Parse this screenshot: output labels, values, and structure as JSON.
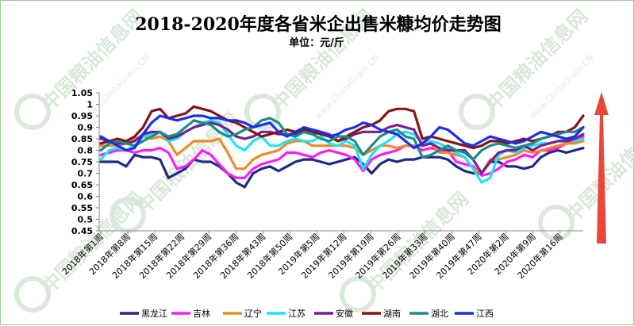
{
  "watermark": {
    "brand": "中国粮油信息网",
    "site": "www.ChinaGrain.CN"
  },
  "chart_data": {
    "type": "line",
    "title": "2018-2020年度各省米企出售米糠均价走势图",
    "subtitle": "单位：元/斤",
    "xlabel": "",
    "ylabel": "",
    "ylim": [
      0.45,
      1.05
    ],
    "yticks": [
      "0.45",
      "0.5",
      "0.55",
      "0.6",
      "0.65",
      "0.7",
      "0.75",
      "0.8",
      "0.85",
      "0.9",
      "0.95",
      "1",
      "1.05"
    ],
    "legend_position": "bottom",
    "grid": false,
    "x_tick_labels": [
      "2018年第1周",
      "2018年第8周",
      "2018年第15周",
      "2018年第22周",
      "2018年第29周",
      "2018年第36周",
      "2018年第43周",
      "2018年第50周",
      "2019年第5周",
      "2019年第12周",
      "2019年第19周",
      "2019年第26周",
      "2019年第33周",
      "2019年第40周",
      "2019年第47周",
      "2020年第2周",
      "2020年第9周",
      "2020年第16周"
    ],
    "series": [
      {
        "name": "黑龙江",
        "color": "#1f2a86",
        "values": [
          0.75,
          0.75,
          0.75,
          0.73,
          0.78,
          0.77,
          0.77,
          0.76,
          0.68,
          0.7,
          0.72,
          0.76,
          0.75,
          0.75,
          0.73,
          0.7,
          0.66,
          0.64,
          0.7,
          0.72,
          0.73,
          0.71,
          0.73,
          0.75,
          0.76,
          0.76,
          0.75,
          0.74,
          0.75,
          0.76,
          0.77,
          0.74,
          0.7,
          0.74,
          0.76,
          0.75,
          0.76,
          0.76,
          0.77,
          0.77,
          0.77,
          0.76,
          0.73,
          0.71,
          0.7,
          0.7,
          0.75,
          0.75,
          0.73,
          0.73,
          0.72,
          0.73,
          0.77,
          0.79,
          0.8,
          0.79,
          0.8,
          0.81
        ]
      },
      {
        "name": "吉林",
        "color": "#ff1cf0",
        "values": [
          0.78,
          0.79,
          0.8,
          0.8,
          0.79,
          0.8,
          0.8,
          0.81,
          0.79,
          0.72,
          0.73,
          0.76,
          0.8,
          0.78,
          0.74,
          0.7,
          0.68,
          0.68,
          0.72,
          0.74,
          0.75,
          0.76,
          0.79,
          0.79,
          0.78,
          0.77,
          0.79,
          0.8,
          0.79,
          0.78,
          0.76,
          0.71,
          0.76,
          0.78,
          0.79,
          0.8,
          0.82,
          0.82,
          0.8,
          0.81,
          0.8,
          0.8,
          0.75,
          0.74,
          0.73,
          0.69,
          0.7,
          0.72,
          0.75,
          0.76,
          0.78,
          0.77,
          0.8,
          0.8,
          0.81,
          0.83,
          0.84,
          0.86
        ]
      },
      {
        "name": "辽宁",
        "color": "#ef8a2a",
        "values": [
          0.82,
          0.82,
          0.82,
          0.83,
          0.85,
          0.86,
          0.85,
          0.86,
          0.84,
          0.78,
          0.81,
          0.84,
          0.84,
          0.84,
          0.85,
          0.79,
          0.72,
          0.72,
          0.76,
          0.78,
          0.79,
          0.8,
          0.83,
          0.84,
          0.84,
          0.82,
          0.82,
          0.82,
          0.82,
          0.82,
          0.81,
          0.78,
          0.8,
          0.82,
          0.82,
          0.81,
          0.82,
          0.82,
          0.82,
          0.83,
          0.79,
          0.79,
          0.78,
          0.77,
          0.72,
          0.7,
          0.76,
          0.76,
          0.77,
          0.78,
          0.8,
          0.79,
          0.8,
          0.81,
          0.82,
          0.83,
          0.83,
          0.84
        ]
      },
      {
        "name": "江苏",
        "color": "#1ce6f5",
        "values": [
          0.76,
          0.8,
          0.81,
          0.8,
          0.82,
          0.86,
          0.87,
          0.88,
          0.84,
          0.85,
          0.88,
          0.9,
          0.92,
          0.93,
          0.92,
          0.87,
          0.82,
          0.8,
          0.84,
          0.86,
          0.82,
          0.82,
          0.84,
          0.85,
          0.84,
          0.84,
          0.86,
          0.83,
          0.82,
          0.84,
          0.82,
          0.72,
          0.78,
          0.82,
          0.84,
          0.87,
          0.88,
          0.87,
          0.83,
          0.84,
          0.83,
          0.81,
          0.79,
          0.77,
          0.72,
          0.66,
          0.68,
          0.78,
          0.8,
          0.79,
          0.81,
          0.82,
          0.83,
          0.83,
          0.84,
          0.85,
          0.84,
          0.85
        ]
      },
      {
        "name": "安徽",
        "color": "#7b1e8f",
        "values": [
          0.85,
          0.84,
          0.83,
          0.83,
          0.84,
          0.87,
          0.88,
          0.88,
          0.85,
          0.86,
          0.88,
          0.9,
          0.91,
          0.92,
          0.91,
          0.89,
          0.86,
          0.85,
          0.86,
          0.88,
          0.88,
          0.87,
          0.87,
          0.87,
          0.88,
          0.87,
          0.88,
          0.87,
          0.84,
          0.85,
          0.87,
          0.88,
          0.88,
          0.88,
          0.9,
          0.91,
          0.9,
          0.89,
          0.82,
          0.83,
          0.81,
          0.8,
          0.8,
          0.8,
          0.76,
          0.7,
          0.75,
          0.79,
          0.8,
          0.8,
          0.82,
          0.8,
          0.82,
          0.83,
          0.84,
          0.84,
          0.85,
          0.87
        ]
      },
      {
        "name": "湖南",
        "color": "#861414",
        "values": [
          0.83,
          0.84,
          0.85,
          0.84,
          0.86,
          0.9,
          0.97,
          0.98,
          0.94,
          0.95,
          0.96,
          0.99,
          0.98,
          0.97,
          0.95,
          0.93,
          0.92,
          0.9,
          0.88,
          0.86,
          0.87,
          0.88,
          0.89,
          0.88,
          0.89,
          0.88,
          0.87,
          0.86,
          0.84,
          0.86,
          0.88,
          0.9,
          0.91,
          0.93,
          0.97,
          0.98,
          0.98,
          0.97,
          0.85,
          0.86,
          0.85,
          0.84,
          0.83,
          0.82,
          0.81,
          0.82,
          0.84,
          0.84,
          0.83,
          0.84,
          0.85,
          0.84,
          0.85,
          0.86,
          0.88,
          0.88,
          0.9,
          0.95
        ]
      },
      {
        "name": "湖北",
        "color": "#1c8c86",
        "values": [
          0.8,
          0.83,
          0.84,
          0.83,
          0.82,
          0.84,
          0.86,
          0.88,
          0.86,
          0.87,
          0.9,
          0.93,
          0.92,
          0.91,
          0.88,
          0.86,
          0.87,
          0.89,
          0.9,
          0.93,
          0.94,
          0.92,
          0.87,
          0.86,
          0.88,
          0.87,
          0.85,
          0.84,
          0.86,
          0.86,
          0.84,
          0.78,
          0.82,
          0.86,
          0.88,
          0.89,
          0.86,
          0.85,
          0.77,
          0.78,
          0.8,
          0.82,
          0.8,
          0.79,
          0.76,
          0.8,
          0.82,
          0.83,
          0.82,
          0.81,
          0.82,
          0.83,
          0.85,
          0.86,
          0.87,
          0.88,
          0.88,
          0.9
        ]
      },
      {
        "name": "江西",
        "color": "#1c2eea",
        "values": [
          0.86,
          0.84,
          0.82,
          0.8,
          0.81,
          0.87,
          0.92,
          0.95,
          0.94,
          0.93,
          0.94,
          0.95,
          0.95,
          0.94,
          0.94,
          0.93,
          0.93,
          0.92,
          0.9,
          0.91,
          0.92,
          0.88,
          0.86,
          0.88,
          0.9,
          0.89,
          0.88,
          0.86,
          0.87,
          0.89,
          0.9,
          0.92,
          0.91,
          0.89,
          0.88,
          0.87,
          0.84,
          0.81,
          0.83,
          0.86,
          0.9,
          0.89,
          0.86,
          0.83,
          0.82,
          0.84,
          0.86,
          0.85,
          0.84,
          0.83,
          0.84,
          0.86,
          0.88,
          0.87,
          0.86,
          0.85,
          0.86,
          0.9
        ]
      }
    ]
  }
}
